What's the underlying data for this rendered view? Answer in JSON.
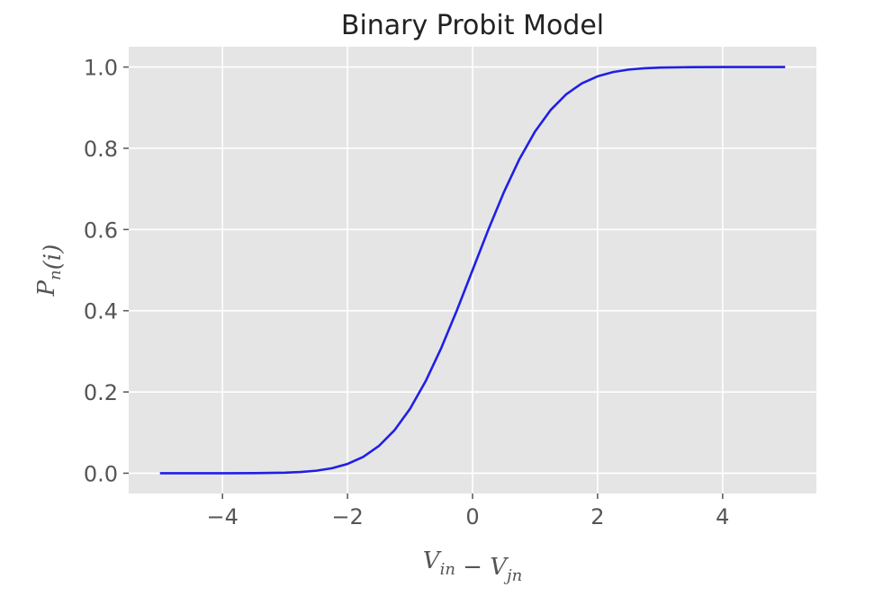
{
  "chart_data": {
    "type": "line",
    "title": "Binary Probit Model",
    "xlabel": {
      "parts": [
        {
          "text": "V",
          "sub": "in"
        },
        {
          "text": " − "
        },
        {
          "text": "V",
          "sub": "jn"
        }
      ]
    },
    "ylabel": {
      "parts": [
        {
          "text": "P",
          "sub": "n"
        },
        {
          "text": "(i)"
        }
      ]
    },
    "xlim": [
      -5.5,
      5.5
    ],
    "ylim": [
      -0.05,
      1.05
    ],
    "xticks": [
      -4,
      -2,
      0,
      2,
      4
    ],
    "xtick_labels": [
      "−4",
      "−2",
      "0",
      "2",
      "4"
    ],
    "yticks": [
      0.0,
      0.2,
      0.4,
      0.6,
      0.8,
      1.0
    ],
    "ytick_labels": [
      "0.0",
      "0.2",
      "0.4",
      "0.6",
      "0.8",
      "1.0"
    ],
    "grid": true,
    "style": {
      "background": "#e5e5e5",
      "line_color": "#1f1fe6"
    },
    "series": [
      {
        "x": [
          -5.0,
          -4.5,
          -4.0,
          -3.5,
          -3.0,
          -2.75,
          -2.5,
          -2.25,
          -2.0,
          -1.75,
          -1.5,
          -1.25,
          -1.0,
          -0.75,
          -0.5,
          -0.25,
          0.0,
          0.25,
          0.5,
          0.75,
          1.0,
          1.25,
          1.5,
          1.75,
          2.0,
          2.25,
          2.5,
          2.75,
          3.0,
          3.5,
          4.0,
          4.5,
          5.0
        ],
        "y": [
          0.0,
          0.0,
          0.0,
          0.0002,
          0.0013,
          0.003,
          0.0062,
          0.0122,
          0.0228,
          0.0401,
          0.0668,
          0.1056,
          0.1587,
          0.2266,
          0.3085,
          0.4013,
          0.5,
          0.5987,
          0.6915,
          0.7734,
          0.8413,
          0.8944,
          0.9332,
          0.9599,
          0.9772,
          0.9878,
          0.9938,
          0.997,
          0.9987,
          0.9998,
          1.0,
          1.0,
          1.0
        ]
      }
    ]
  }
}
